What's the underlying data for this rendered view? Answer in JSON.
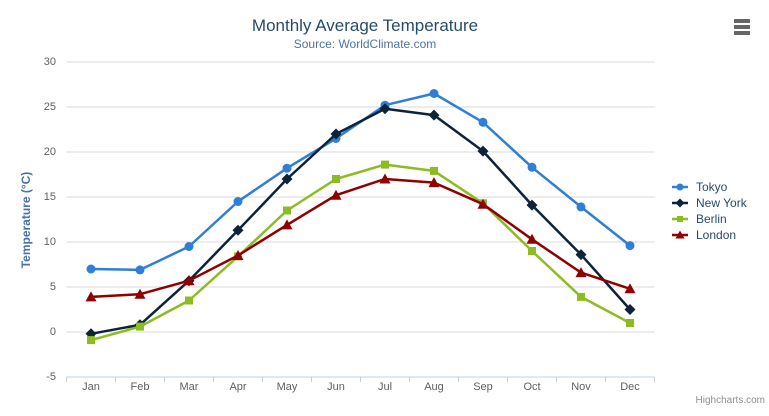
{
  "chart_data": {
    "type": "line",
    "title": "Monthly Average Temperature",
    "subtitle": "Source: WorldClimate.com",
    "xlabel": "",
    "ylabel": "Temperature (°C)",
    "categories": [
      "Jan",
      "Feb",
      "Mar",
      "Apr",
      "May",
      "Jun",
      "Jul",
      "Aug",
      "Sep",
      "Oct",
      "Nov",
      "Dec"
    ],
    "ylim": [
      -5,
      30
    ],
    "ytick_interval": 5,
    "yticks": [
      "30",
      "25",
      "20",
      "15",
      "10",
      "5",
      "0",
      "-5"
    ],
    "grid": true,
    "legend_position": "right",
    "series": [
      {
        "name": "Tokyo",
        "color": "#2f7ed8",
        "marker": "circle",
        "values": [
          7.0,
          6.9,
          9.5,
          14.5,
          18.2,
          21.5,
          25.2,
          26.5,
          23.3,
          18.3,
          13.9,
          9.6
        ]
      },
      {
        "name": "New York",
        "color": "#0d233a",
        "marker": "diamond",
        "values": [
          -0.2,
          0.8,
          5.7,
          11.3,
          17.0,
          22.0,
          24.8,
          24.1,
          20.1,
          14.1,
          8.6,
          2.5
        ]
      },
      {
        "name": "Berlin",
        "color": "#8bbc21",
        "marker": "square",
        "values": [
          -0.9,
          0.6,
          3.5,
          8.4,
          13.5,
          17.0,
          18.6,
          17.9,
          14.3,
          9.0,
          3.9,
          1.0
        ]
      },
      {
        "name": "London",
        "color": "#910000",
        "marker": "triangle",
        "values": [
          3.9,
          4.2,
          5.7,
          8.5,
          11.9,
          15.2,
          17.0,
          16.6,
          14.2,
          10.3,
          6.6,
          4.8
        ]
      }
    ]
  },
  "credits": "Highcharts.com",
  "colors": {
    "title": "#274b6d",
    "subtitle": "#4d759e",
    "axis_label": "#606060",
    "yaxis_title": "#4572a7",
    "legend_text": "#274b6d",
    "grid": "#d8d8d8",
    "axis_line": "#c0d0e0",
    "credits": "#909090",
    "menu_icon": "#666666",
    "background": "#ffffff"
  }
}
